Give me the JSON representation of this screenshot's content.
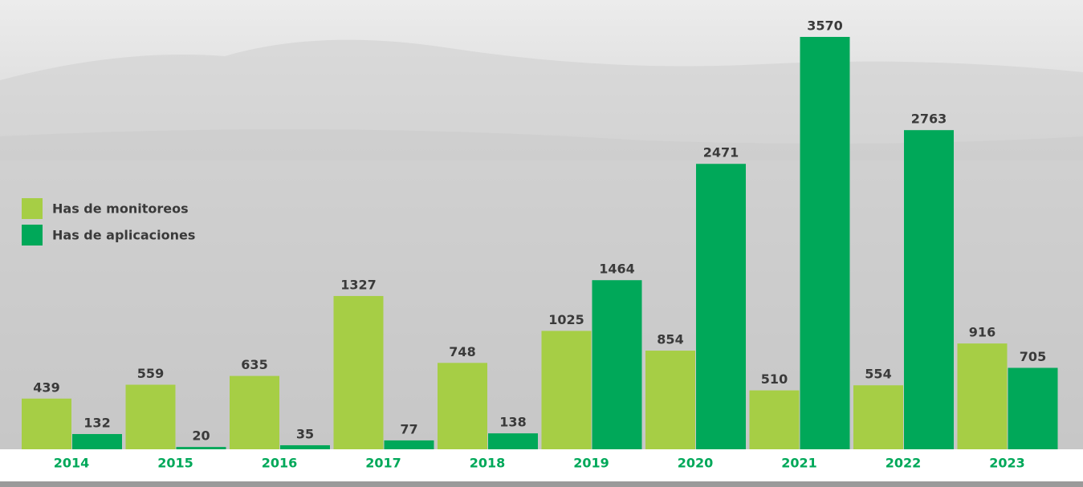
{
  "chart_data": {
    "type": "bar",
    "categories": [
      "2014",
      "2015",
      "2016",
      "2017",
      "2018",
      "2019",
      "2020",
      "2021",
      "2022",
      "2023"
    ],
    "series": [
      {
        "name": "Has de monitoreos",
        "color": "#a6ce45",
        "values": [
          439,
          559,
          635,
          1327,
          748,
          1025,
          854,
          510,
          554,
          916
        ]
      },
      {
        "name": "Has de aplicaciones",
        "color": "#00a859",
        "values": [
          132,
          20,
          35,
          77,
          138,
          1464,
          2471,
          3570,
          2763,
          705
        ]
      }
    ],
    "legend": "left"
  }
}
